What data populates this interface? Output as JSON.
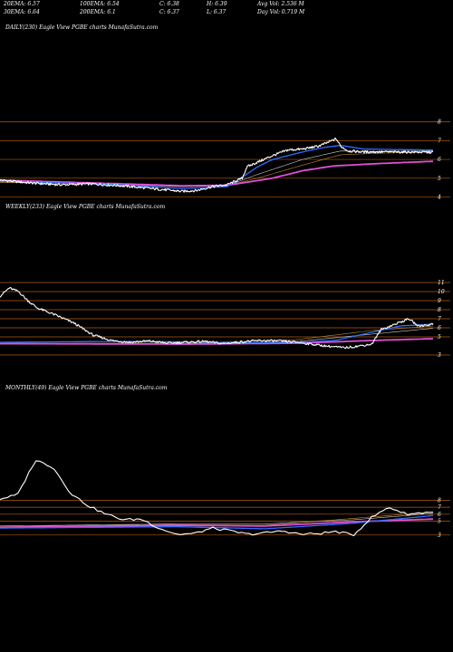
{
  "header": {
    "row1": [
      "20EMA: 6.57",
      "100EMA: 6.54",
      "C: 6.38",
      "H: 6.39",
      "Avg Vol: 2.536  M"
    ],
    "row2": [
      "30EMA: 6.64",
      "200EMA: 6.1",
      "C: 6.37",
      "L: 6.37",
      "Day Vol: 0.719 M"
    ]
  },
  "colors": {
    "background": "#000000",
    "level_line": "#b25a12",
    "price": "#ffffff",
    "ema_blue": "#2f6cff",
    "ema_magenta": "#e04fd8",
    "ema_long": "#cfcfcf",
    "ema_mid": "#c08a2a"
  },
  "chart_data": [
    {
      "type": "line",
      "title": "DAILY(230) Eagle  View  PGBE charts MunafaSutra.com",
      "y_ticks": [
        8,
        7,
        6,
        5,
        4
      ],
      "ylim": [
        3.4,
        8.7
      ],
      "n": 230,
      "series": [
        {
          "role": "price",
          "anchors": [
            [
              0,
              4.9
            ],
            [
              20,
              4.75
            ],
            [
              40,
              4.65
            ],
            [
              60,
              4.7
            ],
            [
              80,
              4.6
            ],
            [
              100,
              4.45
            ],
            [
              120,
              4.3
            ],
            [
              130,
              4.35
            ],
            [
              140,
              4.55
            ],
            [
              150,
              4.65
            ],
            [
              160,
              5.0
            ],
            [
              163,
              5.6
            ],
            [
              170,
              5.85
            ],
            [
              180,
              6.2
            ],
            [
              190,
              6.5
            ],
            [
              200,
              6.55
            ],
            [
              210,
              6.7
            ],
            [
              215,
              6.85
            ],
            [
              222,
              7.1
            ],
            [
              225,
              6.7
            ],
            [
              230,
              6.45
            ],
            [
              240,
              6.4
            ],
            [
              260,
              6.4
            ],
            [
              286,
              6.38
            ]
          ]
        },
        {
          "role": "ema_blue",
          "anchors": [
            [
              0,
              4.85
            ],
            [
              40,
              4.75
            ],
            [
              80,
              4.65
            ],
            [
              120,
              4.45
            ],
            [
              150,
              4.55
            ],
            [
              160,
              5.05
            ],
            [
              170,
              5.6
            ],
            [
              180,
              6.0
            ],
            [
              200,
              6.4
            ],
            [
              215,
              6.65
            ],
            [
              225,
              6.75
            ],
            [
              240,
              6.55
            ],
            [
              286,
              6.5
            ]
          ]
        },
        {
          "role": "ema_long",
          "anchors": [
            [
              0,
              4.8
            ],
            [
              60,
              4.72
            ],
            [
              120,
              4.55
            ],
            [
              150,
              4.6
            ],
            [
              170,
              5.2
            ],
            [
              200,
              6.0
            ],
            [
              225,
              6.45
            ],
            [
              250,
              6.42
            ],
            [
              286,
              6.45
            ]
          ]
        },
        {
          "role": "ema_mid",
          "anchors": [
            [
              0,
              4.78
            ],
            [
              60,
              4.7
            ],
            [
              120,
              4.58
            ],
            [
              150,
              4.62
            ],
            [
              170,
              5.0
            ],
            [
              200,
              5.7
            ],
            [
              225,
              6.25
            ],
            [
              250,
              6.33
            ],
            [
              286,
              6.4
            ]
          ]
        },
        {
          "role": "ema_magenta",
          "anchors": [
            [
              0,
              4.9
            ],
            [
              80,
              4.7
            ],
            [
              120,
              4.6
            ],
            [
              150,
              4.62
            ],
            [
              180,
              5.0
            ],
            [
              200,
              5.4
            ],
            [
              220,
              5.65
            ],
            [
              250,
              5.78
            ],
            [
              286,
              5.9
            ]
          ]
        }
      ]
    },
    {
      "type": "line",
      "title": "WEEKLY(233) Eagle  View  PGBE charts MunafaSutra.com",
      "y_ticks": [
        11,
        10,
        9,
        8,
        7,
        6,
        5,
        3
      ],
      "ylim": [
        2.2,
        12.2
      ],
      "n": 233,
      "series": [
        {
          "role": "price",
          "anchors": [
            [
              0,
              9.5
            ],
            [
              5,
              10.4
            ],
            [
              10,
              10.0
            ],
            [
              15,
              9.0
            ],
            [
              20,
              8.2
            ],
            [
              30,
              7.4
            ],
            [
              40,
              6.5
            ],
            [
              50,
              5.2
            ],
            [
              60,
              4.6
            ],
            [
              70,
              4.4
            ],
            [
              80,
              4.55
            ],
            [
              90,
              4.3
            ],
            [
              100,
              4.4
            ],
            [
              110,
              4.5
            ],
            [
              120,
              4.25
            ],
            [
              130,
              4.45
            ],
            [
              140,
              4.6
            ],
            [
              150,
              4.55
            ],
            [
              160,
              4.4
            ],
            [
              175,
              4.0
            ],
            [
              185,
              3.8
            ],
            [
              190,
              3.9
            ],
            [
              200,
              4.2
            ],
            [
              205,
              5.8
            ],
            [
              215,
              6.6
            ],
            [
              220,
              7.0
            ],
            [
              225,
              6.2
            ],
            [
              233,
              6.4
            ]
          ]
        },
        {
          "role": "ema_blue",
          "anchors": [
            [
              0,
              4.4
            ],
            [
              60,
              4.5
            ],
            [
              100,
              4.45
            ],
            [
              130,
              4.35
            ],
            [
              160,
              4.4
            ],
            [
              180,
              4.6
            ],
            [
              200,
              5.5
            ],
            [
              215,
              6.2
            ],
            [
              233,
              6.4
            ]
          ]
        },
        {
          "role": "ema_long",
          "anchors": [
            [
              0,
              4.2
            ],
            [
              100,
              4.25
            ],
            [
              160,
              4.5
            ],
            [
              200,
              5.3
            ],
            [
              233,
              5.95
            ]
          ]
        },
        {
          "role": "ema_mid",
          "anchors": [
            [
              0,
              4.3
            ],
            [
              100,
              4.3
            ],
            [
              160,
              4.7
            ],
            [
              200,
              5.7
            ],
            [
              233,
              6.2
            ]
          ]
        },
        {
          "role": "ema_magenta",
          "anchors": [
            [
              0,
              4.25
            ],
            [
              100,
              4.2
            ],
            [
              160,
              4.3
            ],
            [
              200,
              4.6
            ],
            [
              233,
              4.8
            ]
          ]
        }
      ]
    },
    {
      "type": "line",
      "title": "MONTHLY(49) Eagle  View  PGBE charts MunafaSutra.com",
      "y_ticks": [
        8,
        7,
        6,
        5,
        3
      ],
      "ylim": [
        1.8,
        15.5
      ],
      "n": 49,
      "series": [
        {
          "role": "price",
          "anchors": [
            [
              0,
              8.2
            ],
            [
              2,
              8.8
            ],
            [
              4,
              13.8
            ],
            [
              6,
              12.8
            ],
            [
              8,
              9.0
            ],
            [
              10,
              7.2
            ],
            [
              12,
              6.0
            ],
            [
              14,
              5.2
            ],
            [
              16,
              5.3
            ],
            [
              18,
              4.0
            ],
            [
              20,
              3.1
            ],
            [
              22,
              3.2
            ],
            [
              24,
              4.0
            ],
            [
              26,
              3.6
            ],
            [
              28,
              3.1
            ],
            [
              30,
              3.3
            ],
            [
              32,
              3.6
            ],
            [
              34,
              3.1
            ],
            [
              36,
              3.2
            ],
            [
              38,
              3.5
            ],
            [
              40,
              3.0
            ],
            [
              42,
              5.5
            ],
            [
              44,
              7.0
            ],
            [
              46,
              6.0
            ],
            [
              49,
              6.35
            ]
          ]
        },
        {
          "role": "ema_blue",
          "anchors": [
            [
              0,
              4.0
            ],
            [
              20,
              4.2
            ],
            [
              30,
              3.9
            ],
            [
              40,
              4.7
            ],
            [
              49,
              5.8
            ]
          ]
        },
        {
          "role": "ema_long",
          "anchors": [
            [
              0,
              4.3
            ],
            [
              20,
              4.6
            ],
            [
              30,
              4.6
            ],
            [
              40,
              5.2
            ],
            [
              49,
              6.1
            ]
          ]
        },
        {
          "role": "ema_mid",
          "anchors": [
            [
              0,
              4.2
            ],
            [
              20,
              4.5
            ],
            [
              30,
              4.4
            ],
            [
              40,
              5.4
            ],
            [
              49,
              6.3
            ]
          ]
        },
        {
          "role": "ema_magenta",
          "anchors": [
            [
              0,
              4.1
            ],
            [
              20,
              4.4
            ],
            [
              30,
              4.3
            ],
            [
              40,
              4.9
            ],
            [
              49,
              5.3
            ]
          ]
        }
      ]
    }
  ]
}
